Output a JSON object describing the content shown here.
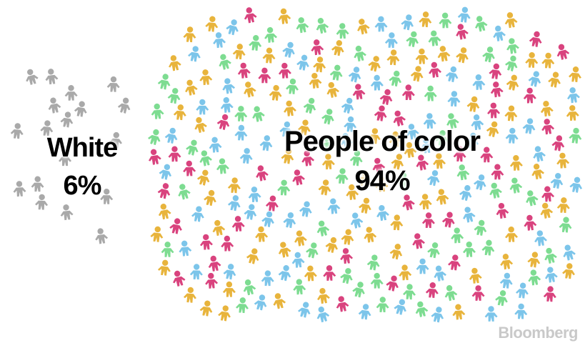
{
  "chart_data": {
    "type": "pictogram",
    "categories": [
      "White",
      "People of color"
    ],
    "values": [
      6,
      94
    ],
    "unit": "%",
    "labels": [
      {
        "name": "White",
        "value_label": "6%"
      },
      {
        "name": "People of color",
        "value_label": "94%"
      }
    ],
    "colors": {
      "white_group": "#a9a9a9",
      "people_of_color": [
        "#e8b43c",
        "#7ddc91",
        "#d9437e",
        "#7cc5ea"
      ]
    }
  },
  "brand": "Bloomberg"
}
